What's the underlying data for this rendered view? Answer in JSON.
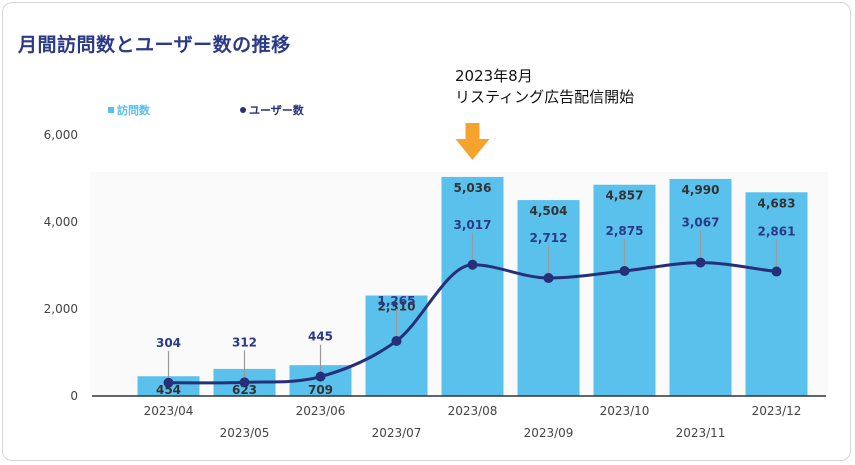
{
  "header": {
    "title": "月間訪問数とユーザー数の推移"
  },
  "annotation": {
    "line1": "2023年8月",
    "line2": "リスティング広告配信開始"
  },
  "legend": {
    "visits": "訪問数",
    "users": "ユーザー数"
  },
  "colors": {
    "title": "#2b3a88",
    "bar": "#5ac0ec",
    "line": "#263078",
    "arrow": "#f4a32c"
  },
  "chart_data": {
    "type": "bar",
    "categories": [
      "2023/04",
      "2023/05",
      "2023/06",
      "2023/07",
      "2023/08",
      "2023/09",
      "2023/10",
      "2023/11",
      "2023/12"
    ],
    "series": [
      {
        "name": "訪問数",
        "type": "bar",
        "values": [
          454,
          623,
          709,
          2310,
          5036,
          4504,
          4857,
          4990,
          4683
        ]
      },
      {
        "name": "ユーザー数",
        "type": "line",
        "values": [
          304,
          312,
          445,
          1265,
          3017,
          2712,
          2875,
          3067,
          2861
        ]
      }
    ],
    "y_ticks": [
      "0",
      "2,000",
      "4,000",
      "6,000"
    ],
    "ylim": [
      0,
      6000
    ],
    "bar_labels": [
      "454",
      "623",
      "709",
      "2,310",
      "5,036",
      "4,504",
      "4,857",
      "4,990",
      "4,683"
    ],
    "line_labels": [
      "304",
      "312",
      "445",
      "1,265",
      "3,017",
      "2,712",
      "2,875",
      "3,067",
      "2,861"
    ],
    "legend_position": "top-left",
    "grid": false
  }
}
